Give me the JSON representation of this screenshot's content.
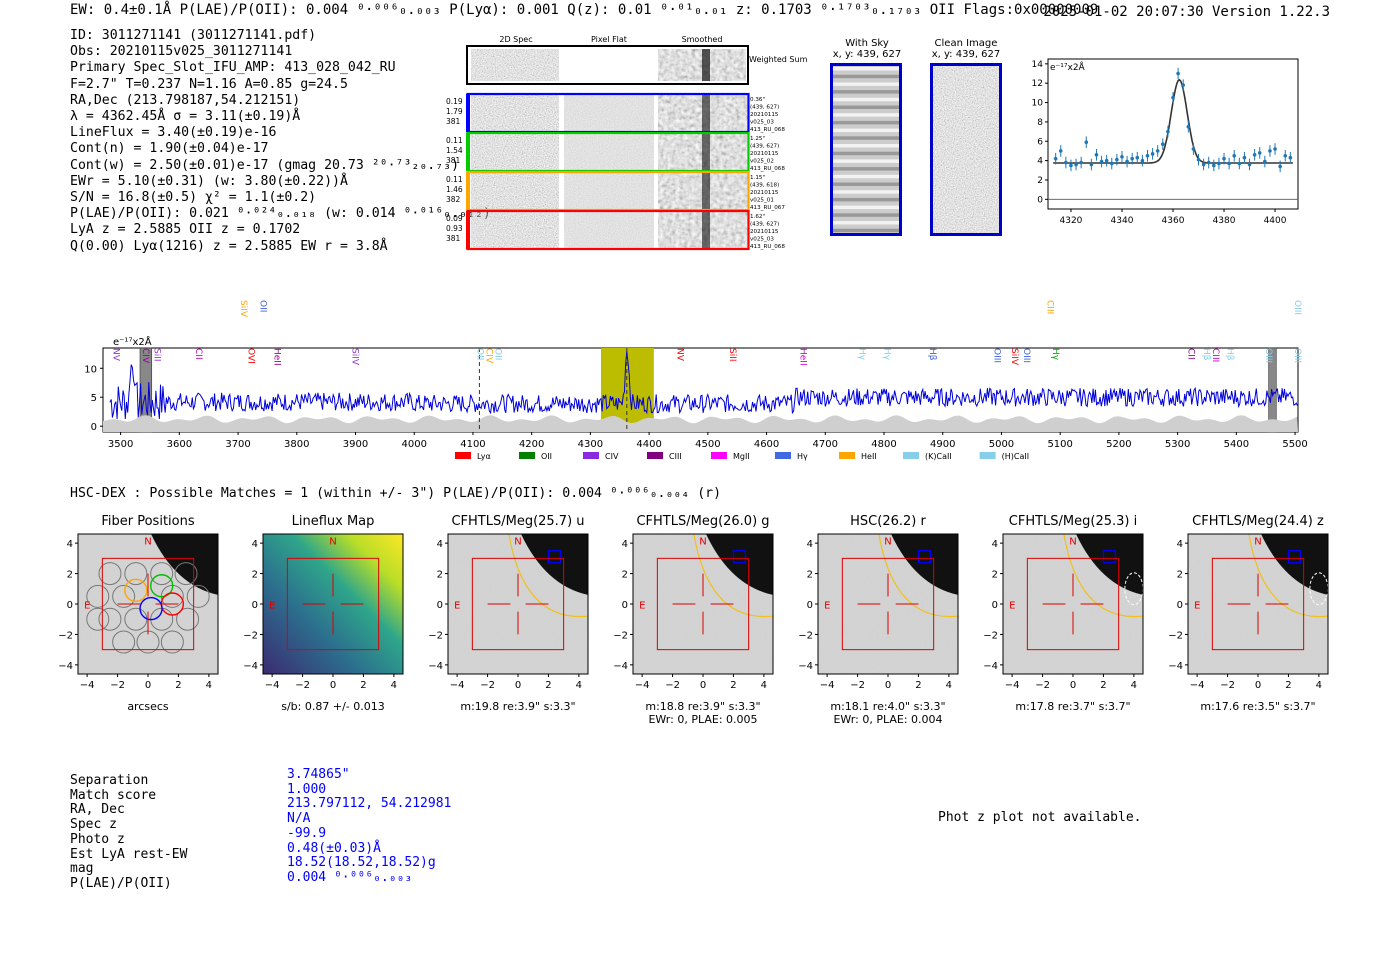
{
  "header": {
    "left": "EW: 0.4±0.1Å  P(LAE)/P(OII): 0.004 ⁰·⁰⁰⁶₀.₀₀₃  P(Lyα): 0.001  Q(z): 0.01 ⁰·⁰¹₀.₀₁  z: 0.1703 ⁰·¹⁷⁰³₀.₁₇₀₃ OII   Flags:0x00000009",
    "right": "2025-01-02 20:07:30  Version 1.22.3"
  },
  "info_lines": [
    "ID: 3011271141 (3011271141.pdf)",
    "Obs: 20210115v025_3011271141",
    "Primary Spec_Slot_IFU_AMP: 413_028_042_RU",
    "F=2.7\"  T=0.237  N=1.16  A=0.85  g=24.5",
    "RA,Dec (213.798187,54.212151)",
    "λ = 4362.45Å  σ = 3.11(±0.19)Å",
    "LineFlux = 3.40(±0.19)e-16",
    "Cont(n) = 1.90(±0.04)e-17",
    "Cont(w) = 2.50(±0.01)e-17 (gmag 20.73 ²⁰·⁷³₂₀.₇₃)",
    "EWr = 5.10(±0.31) (w: 3.80(±0.22))Å",
    "S/N = 16.8(±0.5)  χ² = 1.1(±0.2)",
    "P(LAE)/P(OII): 0.021 ⁰·⁰²⁴₀.₀₁₈ (w: 0.014 ⁰·⁰¹⁶₀.₀₁₂)",
    "LyA z = 2.5885  OII z = 0.1702",
    "Q(0.00) Lyα(1216) z = 2.5885  EW r = 3.8Å"
  ],
  "cutouts": {
    "columns": [
      "2D Spec",
      "Pixel Flat",
      "Smoothed"
    ],
    "weighted_label": "Weighted Sum",
    "rows": [
      {
        "left": [
          "0.19",
          "1.79",
          "381"
        ],
        "right": [
          "0.36\"",
          "(439, 627)",
          "20210115",
          "v025_03",
          "413_RU_068"
        ],
        "color": "#0000ff"
      },
      {
        "left": [
          "0.11",
          "1.54",
          "381"
        ],
        "right": [
          "1.25\"",
          "(439, 627)",
          "20210115",
          "v025_02",
          "413_RU_068"
        ],
        "color": "#00cc00"
      },
      {
        "left": [
          "0.11",
          "1.46",
          "382"
        ],
        "right": [
          "1.15\"",
          "(439, 618)",
          "20210115",
          "v025_01",
          "413_RU_067"
        ],
        "color": "#ffa500"
      },
      {
        "left": [
          "0.09",
          "0.93",
          "381"
        ],
        "right": [
          "1.62\"",
          "(439, 627)",
          "20210115",
          "v025_03",
          "413_RU_068"
        ],
        "color": "#ff0000"
      }
    ],
    "with_sky": {
      "title": "With Sky",
      "coords": "x, y: 439, 627"
    },
    "clean": {
      "title": "Clean Image",
      "coords": "x, y: 439, 627"
    }
  },
  "zoom_chart": {
    "type": "scatter",
    "unit_label": "e⁻¹⁷x2Å",
    "xlim": [
      4311,
      4409
    ],
    "ylim": [
      -1,
      14.5
    ],
    "xticks": [
      4320,
      4340,
      4360,
      4380,
      4400
    ],
    "yticks": [
      0,
      2,
      4,
      6,
      8,
      10,
      12,
      14
    ],
    "points_x": [
      4314,
      4316,
      4318,
      4320,
      4322,
      4324,
      4326,
      4328,
      4330,
      4332,
      4334,
      4336,
      4338,
      4340,
      4342,
      4344,
      4346,
      4348,
      4350,
      4352,
      4354,
      4356,
      4358,
      4360,
      4362,
      4364,
      4366,
      4368,
      4370,
      4372,
      4374,
      4376,
      4378,
      4380,
      4382,
      4384,
      4386,
      4388,
      4390,
      4392,
      4394,
      4396,
      4398,
      4400,
      4402,
      4404,
      4406
    ],
    "points_y": [
      4.2,
      5.0,
      3.8,
      3.5,
      3.6,
      3.8,
      5.9,
      3.6,
      4.6,
      3.9,
      4.0,
      3.7,
      4.1,
      4.4,
      3.9,
      4.2,
      4.3,
      4.0,
      4.5,
      4.7,
      5.0,
      5.7,
      7.0,
      10.5,
      13.0,
      11.8,
      7.5,
      5.2,
      4.1,
      3.6,
      3.8,
      3.5,
      3.7,
      4.2,
      3.7,
      4.5,
      3.7,
      4.3,
      3.6,
      4.6,
      4.8,
      3.9,
      5.0,
      5.2,
      3.4,
      4.5,
      4.3
    ],
    "fit": {
      "center": 4362.45,
      "sigma": 3.11,
      "amplitude": 8.6,
      "baseline": 3.75
    }
  },
  "full_chart": {
    "type": "line",
    "unit_label": "e⁻¹⁷x2Å",
    "xlim": [
      3470,
      5505
    ],
    "ylim": [
      -1,
      13.5
    ],
    "xticks": [
      3500,
      3600,
      3700,
      3800,
      3900,
      4000,
      4100,
      4200,
      4300,
      4400,
      4500,
      4600,
      4700,
      4800,
      4900,
      5000,
      5100,
      5200,
      5300,
      5400,
      5500
    ],
    "yticks": [
      0,
      5,
      10
    ],
    "highlight_x": [
      4318,
      4408
    ],
    "dashed_lines_x": [
      4111,
      4362
    ],
    "masked_x": [
      [
        3533,
        3553
      ],
      [
        5455,
        5468
      ]
    ],
    "lines": [
      {
        "label": "NV",
        "x": 3483,
        "color": "#9933cc",
        "row": 2
      },
      {
        "label": "CIV",
        "x": 3533,
        "color": "#990099",
        "row": 2
      },
      {
        "label": "SiII",
        "x": 3553,
        "color": "#9933cc",
        "row": 2
      },
      {
        "label": "CII",
        "x": 3623,
        "color": "#cc00cc",
        "row": 2
      },
      {
        "label": "SiIV",
        "x": 3700,
        "color": "#ffa500",
        "row": 0
      },
      {
        "label": "OVI",
        "x": 3713,
        "color": "#ff0000",
        "row": 2
      },
      {
        "label": "OII",
        "x": 3733,
        "color": "#4060dd",
        "row": 0
      },
      {
        "label": "HeII",
        "x": 3757,
        "color": "#990099",
        "row": 2
      },
      {
        "label": "SiIV",
        "x": 3890,
        "color": "#9933cc",
        "row": 2
      },
      {
        "label": "OII",
        "x": 4103,
        "color": "#87ceeb",
        "row": 2
      },
      {
        "label": "CIV",
        "x": 4118,
        "color": "#ffa500",
        "row": 2
      },
      {
        "label": "OII",
        "x": 4133,
        "color": "#87ceeb",
        "row": 2
      },
      {
        "label": "NV",
        "x": 4443,
        "color": "#ff0000",
        "row": 2
      },
      {
        "label": "SiII",
        "x": 4533,
        "color": "#ff0000",
        "row": 2
      },
      {
        "label": "HeII",
        "x": 4653,
        "color": "#cc00cc",
        "row": 2
      },
      {
        "label": "Hγ",
        "x": 4753,
        "color": "#87ceeb",
        "row": 2
      },
      {
        "label": "Hγ",
        "x": 4796,
        "color": "#87ceeb",
        "row": 2
      },
      {
        "label": "Hβ",
        "x": 4873,
        "color": "#4060dd",
        "row": 2
      },
      {
        "label": "OIII",
        "x": 4983,
        "color": "#4060dd",
        "row": 2
      },
      {
        "label": "SiIV",
        "x": 5013,
        "color": "#ff0000",
        "row": 2
      },
      {
        "label": "OIII",
        "x": 5033,
        "color": "#4060dd",
        "row": 2
      },
      {
        "label": "CIII",
        "x": 5073,
        "color": "#ffa500",
        "row": 0
      },
      {
        "label": "Hγ",
        "x": 5083,
        "color": "#00aa00",
        "row": 2
      },
      {
        "label": "CII",
        "x": 5313,
        "color": "#990099",
        "row": 2
      },
      {
        "label": "Hβ",
        "x": 5340,
        "color": "#87ceeb",
        "row": 2
      },
      {
        "label": "CIII",
        "x": 5355,
        "color": "#cc00cc",
        "row": 2
      },
      {
        "label": "Hβ",
        "x": 5380,
        "color": "#87ceeb",
        "row": 2
      },
      {
        "label": "OIII",
        "x": 5445,
        "color": "#87ceeb",
        "row": 2
      },
      {
        "label": "OIII",
        "x": 5495,
        "color": "#87ceeb",
        "row": 0
      },
      {
        "label": "OIII",
        "x": 5495,
        "color": "#87ceeb",
        "row": 2
      }
    ],
    "legend": [
      {
        "label": "Lyα",
        "color": "#ff0000"
      },
      {
        "label": "OII",
        "color": "#008000"
      },
      {
        "label": "CIV",
        "color": "#8a2be2"
      },
      {
        "label": "CIII",
        "color": "#800080"
      },
      {
        "label": "MgII",
        "color": "#ff00ff"
      },
      {
        "label": "Hγ",
        "color": "#4169e1"
      },
      {
        "label": "HeII",
        "color": "#ffa500"
      },
      {
        "label": "(K)CaII",
        "color": "#87ceeb"
      },
      {
        "label": "(H)CaII",
        "color": "#87ceeb"
      }
    ]
  },
  "hsc": {
    "title": "HSC-DEX : Possible Matches = 1 (within +/- 3\")  P(LAE)/P(OII): 0.004 ⁰·⁰⁰⁶₀.₀₀₄ (r)",
    "axis_ticks": [
      "−4",
      "−2",
      "0",
      "2",
      "4"
    ],
    "north_label": "N",
    "east_label": "E",
    "panels": [
      {
        "title": "Fiber Positions",
        "caption1": "arcsecs",
        "caption2": ""
      },
      {
        "title": "Lineflux Map",
        "caption1": "s/b: 0.87 +/- 0.013",
        "caption2": ""
      },
      {
        "title": "CFHTLS/Meg(25.7) u",
        "caption1": "m:19.8  re:3.9\"  s:3.3\"",
        "caption2": ""
      },
      {
        "title": "CFHTLS/Meg(26.0) g",
        "caption1": "m:18.8  re:3.9\"  s:3.3\"",
        "caption2": "EWr: 0, PLAE: 0.005"
      },
      {
        "title": "HSC(26.2) r",
        "caption1": "m:18.1  re:4.0\"  s:3.3\"",
        "caption2": "EWr: 0, PLAE: 0.004"
      },
      {
        "title": "CFHTLS/Meg(25.3) i",
        "caption1": "m:17.8  re:3.7\"  s:3.7\"",
        "caption2": ""
      },
      {
        "title": "CFHTLS/Meg(24.4) z",
        "caption1": "m:17.6  re:3.5\"  s:3.7\"",
        "caption2": ""
      }
    ]
  },
  "match_table": {
    "labels": [
      "Separation",
      "Match score",
      "RA, Dec",
      "Spec z",
      "Photo z",
      "Est LyA rest-EW",
      "mag",
      "P(LAE)/P(OII)"
    ],
    "values": [
      "3.74865\"",
      "1.000",
      "213.797112, 54.212981",
      "N/A",
      "-99.9",
      "0.48(±0.03)Å",
      "18.52(18.52,18.52)g",
      "0.004 ⁰·⁰⁰⁶₀.₀₀₃"
    ]
  },
  "phot_z_note": "Phot z plot not available."
}
